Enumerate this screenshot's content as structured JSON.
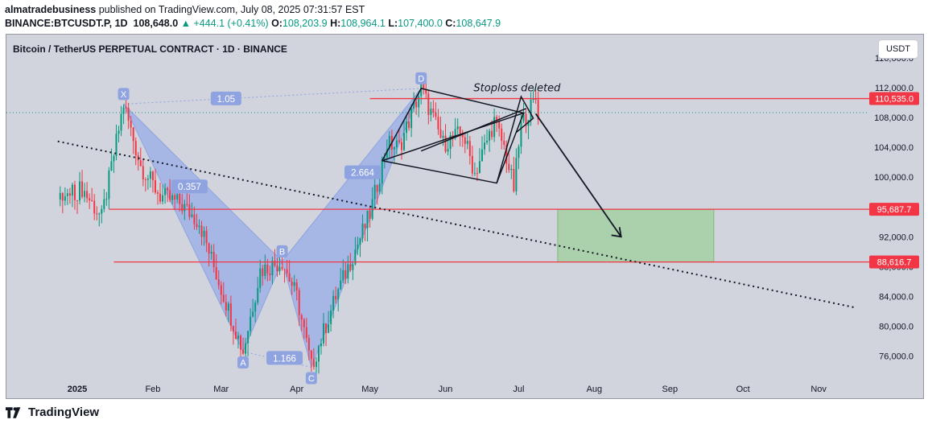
{
  "header": {
    "author": "almatradebusiness",
    "published": "published on TradingView.com, July 08, 2025 07:31:57 EST",
    "symbol": "BINANCE:BTCUSDT.P, 1D",
    "price": "108,648.0",
    "change": "▲ +444.1 (+0.41%)",
    "o_label": "O:",
    "o_value": "108,203.9",
    "h_label": "H:",
    "h_value": "108,964.1",
    "l_label": "L:",
    "l_value": "107,400.0",
    "c_label": "C:",
    "c_value": "108,647.9"
  },
  "chart_title": "Bitcoin / TetherUS PERPETUAL CONTRACT · 1D · BINANCE",
  "currency_button": "USDT",
  "footer": {
    "brand": "TradingView"
  },
  "colors": {
    "background": "#d1d4dc",
    "up": "#089981",
    "down": "#f23645",
    "harmonic_fill": "#9fb0e6",
    "target_zone": "#a5cfa6",
    "level_line": "#f23645"
  },
  "chart_data": {
    "type": "candlestick",
    "title": "Bitcoin / TetherUS PERPETUAL CONTRACT · 1D · BINANCE",
    "ylim": [
      72500,
      117500
    ],
    "y_ticks": [
      "76,000.0",
      "80,000.0",
      "84,000.0",
      "88,000.0",
      "92,000.0",
      "96,000.0",
      "100,000.0",
      "104,000.0",
      "108,000.0",
      "112,000.0",
      "116,000.0"
    ],
    "x_ticks": [
      "2025",
      "Feb",
      "Mar",
      "Apr",
      "May",
      "Jun",
      "Jul",
      "Aug",
      "Sep",
      "Oct",
      "Nov"
    ],
    "price_levels": [
      {
        "label": "110,535.0",
        "value": 110535
      },
      {
        "label": "95,687.7",
        "value": 95687.7
      },
      {
        "label": "88,616.7",
        "value": 88616.7
      }
    ],
    "harmonic_pattern": {
      "points": [
        {
          "label": "X",
          "date": "Jan 20",
          "price": 109800
        },
        {
          "label": "A",
          "date": "Mar 10",
          "price": 76600
        },
        {
          "label": "B",
          "date": "Mar 26",
          "price": 88700
        },
        {
          "label": "C",
          "date": "Apr 07",
          "price": 74500
        },
        {
          "label": "D",
          "date": "May 22",
          "price": 111900
        }
      ],
      "ratios": [
        {
          "label": "1.05",
          "between": "X-D"
        },
        {
          "label": "0.357",
          "between": "X-B"
        },
        {
          "label": "1.166",
          "between": "A-C"
        },
        {
          "label": "2.664",
          "between": "B-D"
        }
      ]
    },
    "annotations": [
      {
        "text": "Stoploss deleted",
        "date": "Jul 01",
        "price": 111500
      }
    ],
    "target_zone": {
      "from": "Jul 17",
      "to": "Sep 19",
      "high": 95687.7,
      "low": 88616.7
    },
    "projected_path": [
      {
        "date": "Jul 08",
        "price": 108500
      },
      {
        "date": "Aug 12",
        "price": 92000
      }
    ],
    "trendline": [
      {
        "date": "Dec 24",
        "price": 104800
      },
      {
        "date": "Nov 16",
        "price": 82500
      }
    ]
  }
}
